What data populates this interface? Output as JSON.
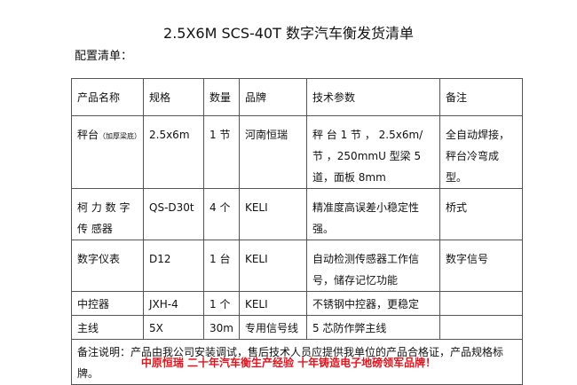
{
  "title": "2.5X6M SCS-40T 数字汽车衡发货清单",
  "subtitle": "配置清单：",
  "headers": [
    "产品名称",
    "规格",
    "数量",
    "品牌",
    "技术参数",
    "备注"
  ],
  "rows": [
    {
      "name": "秤台",
      "name_note": "（加厚梁底）",
      "spec": "2.5x6m",
      "qty": "1 节",
      "brand": "河南恒瑞",
      "tech": "秤 台 1 节 ， 2.5x6m/ 节 ，250mmU 型梁 5 道，面板 8mm",
      "remark": "全自动焊接，秤台冷弯成型。"
    },
    {
      "name": "柯 力 数 字 传 感器",
      "spec": "QS-D30t",
      "qty": "4 个",
      "brand": "KELI",
      "tech": "精准度高误差小稳定性强。",
      "remark": "桥式"
    },
    {
      "name": "数字仪表",
      "spec": "D12",
      "qty": "1 台",
      "brand": "KELI",
      "tech": "自动检测传感器工作信号，储存记忆功能",
      "remark": "数字信号"
    },
    {
      "name": "中控器",
      "spec": "JXH-4",
      "qty": "1 个",
      "brand": "KELI",
      "tech": "不锈钢中控器，更稳定",
      "remark": ""
    },
    {
      "name": "主线",
      "spec": "5X",
      "qty": "30m",
      "brand": "专用信号线",
      "tech": "5 芯防作弊主线",
      "remark": ""
    }
  ],
  "note": "备注说明：产品由我公司安装调试，售后技术人员应提供我单位的产品合格证，产品规格标牌。",
  "footer": "中原恒瑞  二十年汽车衡生产经验  十年铸造电子地磅领军品牌！",
  "colors": {
    "footer": "#e0141e"
  }
}
